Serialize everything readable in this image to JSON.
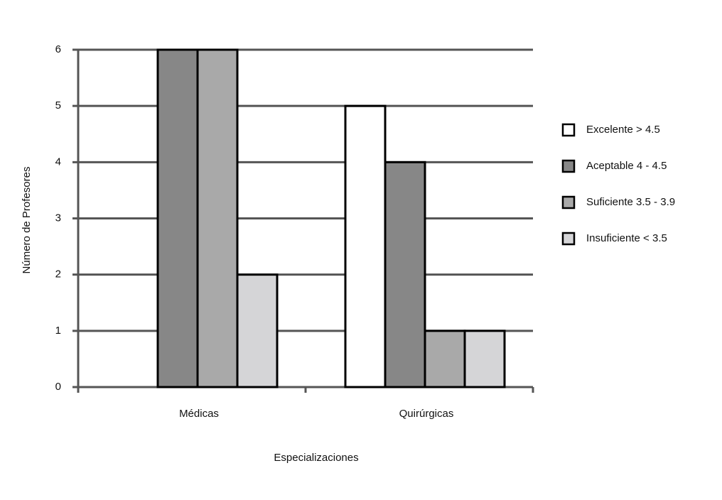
{
  "chart_data": {
    "type": "bar",
    "x_label": "Especializaciones",
    "y_label": "Número de Profesores",
    "categories": [
      "Médicas",
      "Quirúrgicas"
    ],
    "series": [
      {
        "name": "Excelente > 4.5",
        "color": "#ffffff",
        "values": [
          0,
          5
        ]
      },
      {
        "name": "Aceptable 4 - 4.5",
        "color": "#878787",
        "values": [
          6,
          4
        ]
      },
      {
        "name": "Suficiente 3.5 - 3.9",
        "color": "#a9a9a9",
        "values": [
          6,
          1
        ]
      },
      {
        "name": "Insuficiente < 3.5",
        "color": "#d5d5d7",
        "values": [
          2,
          1
        ]
      }
    ],
    "ylim": [
      0,
      6
    ],
    "yticks": [
      0,
      1,
      2,
      3,
      4,
      5,
      6
    ],
    "grid": true,
    "legend": "right"
  }
}
